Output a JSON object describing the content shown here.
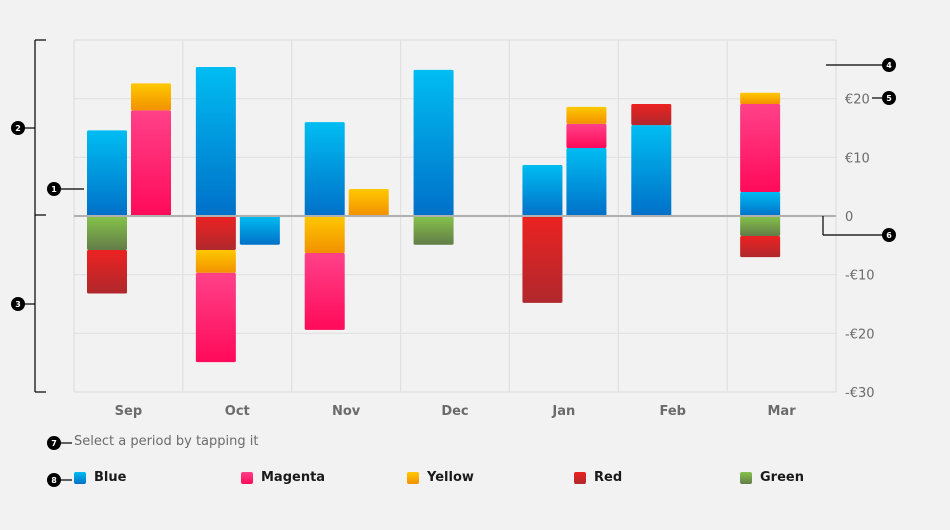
{
  "chart_data": {
    "type": "bar",
    "stacked": true,
    "categories": [
      "Sep",
      "Oct",
      "Nov",
      "Dec",
      "Jan",
      "Feb",
      "Mar"
    ],
    "y_ticks": [
      {
        "value": 20,
        "label": "€20"
      },
      {
        "value": 10,
        "label": "€10"
      },
      {
        "value": 0,
        "label": "0"
      },
      {
        "value": -10,
        "label": "-€10"
      },
      {
        "value": -20,
        "label": "-€20"
      },
      {
        "value": -30,
        "label": "-€30"
      }
    ],
    "ylim": [
      -30,
      30
    ],
    "grid": true,
    "legend_position": "bottom",
    "series": [
      {
        "name": "Blue",
        "color_top": "#00bdf2",
        "color_bottom": "#0070c8"
      },
      {
        "name": "Magenta",
        "color_top": "#ff4188",
        "color_bottom": "#ff0a5a"
      },
      {
        "name": "Yellow",
        "color_top": "#ffc800",
        "color_bottom": "#f29100"
      },
      {
        "name": "Red",
        "color_top": "#ec2222",
        "color_bottom": "#b0282c"
      },
      {
        "name": "Green",
        "color_top": "#86c34a",
        "color_bottom": "#627d48"
      }
    ],
    "bars": [
      {
        "category": "Sep",
        "slot": 0,
        "segments": [
          {
            "series": "Blue",
            "value": 14.6
          },
          {
            "series": "Green",
            "value": -5.8
          },
          {
            "series": "Red",
            "value": -7.4
          }
        ]
      },
      {
        "category": "Sep",
        "slot": 1,
        "segments": [
          {
            "series": "Magenta",
            "value": 18.0
          },
          {
            "series": "Yellow",
            "value": 4.6
          }
        ]
      },
      {
        "category": "Oct",
        "slot": 0,
        "segments": [
          {
            "series": "Blue",
            "value": 25.4
          },
          {
            "series": "Red",
            "value": -5.8
          },
          {
            "series": "Yellow",
            "value": -3.9
          },
          {
            "series": "Magenta",
            "value": -15.2
          }
        ]
      },
      {
        "category": "Oct",
        "slot": 1,
        "segments": [
          {
            "series": "Blue",
            "value": -4.9
          }
        ]
      },
      {
        "category": "Nov",
        "slot": 0,
        "segments": [
          {
            "series": "Blue",
            "value": 16.0
          },
          {
            "series": "Yellow",
            "value": -6.3
          },
          {
            "series": "Magenta",
            "value": -13.1
          }
        ]
      },
      {
        "category": "Nov",
        "slot": 1,
        "segments": [
          {
            "series": "Yellow",
            "value": 4.6
          }
        ]
      },
      {
        "category": "Dec",
        "slot": 0,
        "segments": [
          {
            "series": "Blue",
            "value": 24.9
          },
          {
            "series": "Green",
            "value": -4.9
          }
        ]
      },
      {
        "category": "Jan",
        "slot": 0,
        "segments": [
          {
            "series": "Blue",
            "value": 8.7
          },
          {
            "series": "Red",
            "value": -14.8
          }
        ]
      },
      {
        "category": "Jan",
        "slot": 1,
        "segments": [
          {
            "series": "Blue",
            "value": 11.6
          },
          {
            "series": "Magenta",
            "value": 4.1
          },
          {
            "series": "Yellow",
            "value": 2.9
          }
        ]
      },
      {
        "category": "Feb",
        "slot": 0,
        "segments": [
          {
            "series": "Blue",
            "value": 15.5
          },
          {
            "series": "Red",
            "value": 3.6
          }
        ]
      },
      {
        "category": "Mar",
        "slot": 0,
        "segments": [
          {
            "series": "Blue",
            "value": 4.1
          },
          {
            "series": "Magenta",
            "value": 15.0
          },
          {
            "series": "Yellow",
            "value": 1.9
          },
          {
            "series": "Green",
            "value": -3.4
          },
          {
            "series": "Red",
            "value": -3.6
          }
        ]
      }
    ]
  },
  "hint_text": "Select a period by tapping it",
  "annotations": [
    "1",
    "2",
    "3",
    "4",
    "5",
    "6",
    "7",
    "8"
  ],
  "colors": {
    "background": "#f2f2f2",
    "grid": "#e0e0e0",
    "zero_line": "#b0b0b0",
    "tick_text": "#6b6b6b",
    "legend_text": "#1a1a1a",
    "marker": "#000000"
  }
}
